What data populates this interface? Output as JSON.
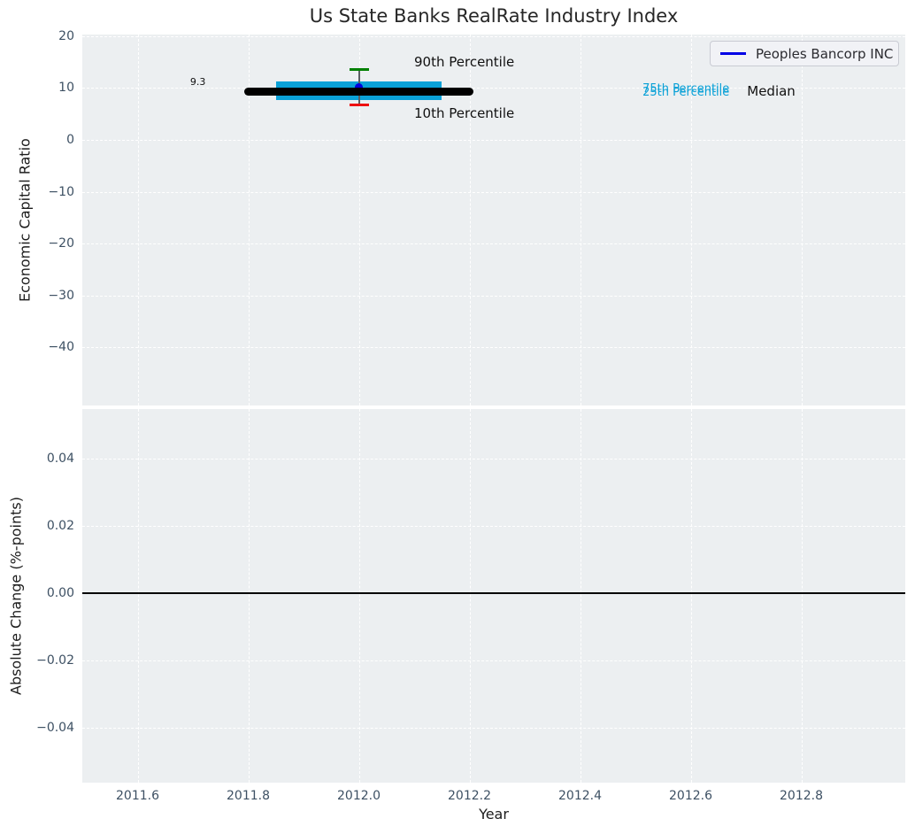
{
  "title": "Us State Banks RealRate Industry Index",
  "legend": {
    "label": "Peoples Bancorp INC",
    "line_color": "#0000e6"
  },
  "colors": {
    "plot_background": "#eceff1",
    "gridline": "#ffffff",
    "tick_label": "#3d5063",
    "box_cyan": "#0aa1d7",
    "p90_cap_green": "#008000",
    "p10_cap_red": "#ee1010",
    "company_blue": "#0000dd",
    "median_black": "#000000"
  },
  "chart_data": [
    {
      "type": "boxplot",
      "subplot": "top",
      "title": "Us State Banks RealRate Industry Index",
      "ylabel": "Economic Capital Ratio",
      "ylim": [
        -51.2,
        20.3
      ],
      "yticks": [
        20,
        10,
        0,
        -10,
        -20,
        -30,
        -40
      ],
      "ytick_labels": [
        "20",
        "10",
        "0",
        "−10",
        "−20",
        "−30",
        "−40"
      ],
      "xlim": [
        2011.5,
        2012.988
      ],
      "grid": true,
      "legend_position": "upper right",
      "industry_box": {
        "x_center": 2012.0,
        "median": 9.3,
        "median_span": [
          2011.8,
          2012.2
        ],
        "p25": 7.7,
        "p75": 11.3,
        "box_span": [
          2011.85,
          2012.15
        ],
        "p10": 6.8,
        "p90": 13.5,
        "colors": {
          "median": "#000000",
          "box": "#0aa1d7",
          "p90_cap": "#008000",
          "p10_cap": "#ee1010",
          "whisker": "#5a5f63"
        }
      },
      "company_point": {
        "name": "Peoples Bancorp INC",
        "x": 2012.0,
        "y": 10.2,
        "color": "#0000dd"
      },
      "annotations": [
        {
          "name": "median-value-label",
          "text": "9.3",
          "x": 2011.695,
          "y": 12.2,
          "color": "#111111",
          "size": 11
        },
        {
          "name": "label-90th-percentile",
          "text": "90th Percentile",
          "x": 2012.1,
          "y": 16.5,
          "color": "#111111",
          "size": 15
        },
        {
          "name": "label-10th-percentile",
          "text": "10th Percentile",
          "x": 2012.1,
          "y": 6.6,
          "color": "#111111",
          "size": 15
        },
        {
          "name": "label-75th-percentile",
          "text": "75th Percentile",
          "x": 2012.513,
          "y": 11.0,
          "color": "#0aa1d7",
          "size": 13
        },
        {
          "name": "label-25th-percentile",
          "text": "25th Percentile",
          "x": 2012.513,
          "y": 10.35,
          "color": "#0aa1d7",
          "size": 13
        },
        {
          "name": "label-median",
          "text": "Median",
          "x": 2012.702,
          "y": 10.9,
          "color": "#111111",
          "size": 15
        }
      ]
    },
    {
      "type": "line",
      "subplot": "bottom",
      "ylabel": "Absolute Change (%-points)",
      "xlabel": "Year",
      "ylim": [
        -0.0563,
        0.0547
      ],
      "yticks": [
        0.04,
        0.02,
        0,
        -0.02,
        -0.04
      ],
      "ytick_labels": [
        "0.04",
        "0.02",
        "0.00",
        "−0.02",
        "−0.04"
      ],
      "xlim": [
        2011.5,
        2012.988
      ],
      "xticks": [
        2011.6,
        2011.8,
        2012.0,
        2012.2,
        2012.4,
        2012.6,
        2012.8
      ],
      "xtick_labels": [
        "2011.6",
        "2011.8",
        "2012.0",
        "2012.2",
        "2012.4",
        "2012.6",
        "2012.8"
      ],
      "grid": true,
      "zero_line": {
        "y": 0.0,
        "color": "#000000"
      },
      "series": []
    }
  ]
}
